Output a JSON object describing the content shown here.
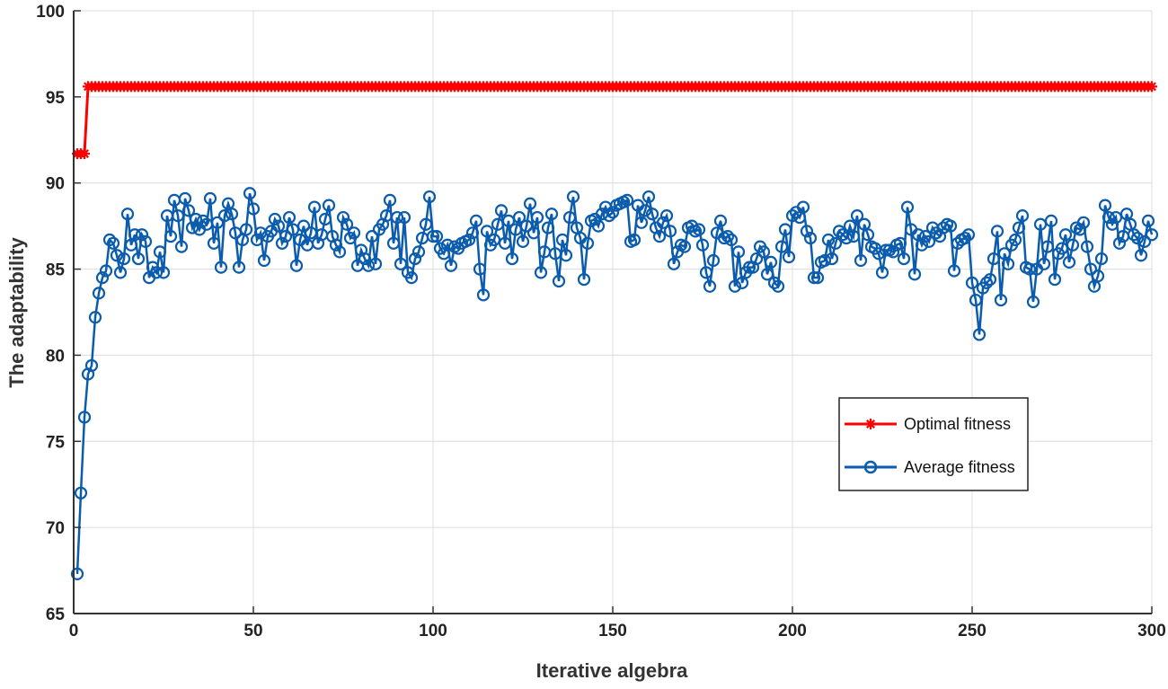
{
  "chart_data": {
    "type": "line",
    "title": "",
    "xlabel": "Iterative algebra",
    "ylabel": "The adaptability",
    "xlim": [
      0,
      300
    ],
    "ylim": [
      65,
      100
    ],
    "xticks": [
      0,
      50,
      100,
      150,
      200,
      250,
      300
    ],
    "yticks": [
      65,
      70,
      75,
      80,
      85,
      90,
      95,
      100
    ],
    "grid": true,
    "legend_position": "right-center",
    "series": [
      {
        "name": "Optimal fitness",
        "color": "#ff0000",
        "marker": "asterisk",
        "segments": [
          {
            "x_start": 1,
            "x_end": 3,
            "value": 91.7
          },
          {
            "x_start": 4,
            "x_end": 300,
            "value": 95.6
          }
        ]
      },
      {
        "name": "Average fitness",
        "color": "#0b5cad",
        "marker": "circle",
        "x": [
          1,
          2,
          3,
          4,
          5,
          6,
          7,
          8,
          9,
          10,
          11,
          12,
          13,
          14,
          15,
          16,
          17,
          18,
          19,
          20,
          21,
          22,
          23,
          24,
          25,
          26,
          27,
          28,
          29,
          30,
          31,
          32,
          33,
          34,
          35,
          36,
          37,
          38,
          39,
          40,
          41,
          42,
          43,
          44,
          45,
          46,
          47,
          48,
          49,
          50,
          51,
          52,
          53,
          54,
          55,
          56,
          57,
          58,
          59,
          60,
          61,
          62,
          63,
          64,
          65,
          66,
          67,
          68,
          69,
          70,
          71,
          72,
          73,
          74,
          75,
          76,
          77,
          78,
          79,
          80,
          81,
          82,
          83,
          84,
          85,
          86,
          87,
          88,
          89,
          90,
          91,
          92,
          93,
          94,
          95,
          96,
          97,
          98,
          99,
          100,
          101,
          102,
          103,
          104,
          105,
          106,
          107,
          108,
          109,
          110,
          111,
          112,
          113,
          114,
          115,
          116,
          117,
          118,
          119,
          120,
          121,
          122,
          123,
          124,
          125,
          126,
          127,
          128,
          129,
          130,
          131,
          132,
          133,
          134,
          135,
          136,
          137,
          138,
          139,
          140,
          141,
          142,
          143,
          144,
          145,
          146,
          147,
          148,
          149,
          150,
          151,
          152,
          153,
          154,
          155,
          156,
          157,
          158,
          159,
          160,
          161,
          162,
          163,
          164,
          165,
          166,
          167,
          168,
          169,
          170,
          171,
          172,
          173,
          174,
          175,
          176,
          177,
          178,
          179,
          180,
          181,
          182,
          183,
          184,
          185,
          186,
          187,
          188,
          189,
          190,
          191,
          192,
          193,
          194,
          195,
          196,
          197,
          198,
          199,
          200,
          201,
          202,
          203,
          204,
          205,
          206,
          207,
          208,
          209,
          210,
          211,
          212,
          213,
          214,
          215,
          216,
          217,
          218,
          219,
          220,
          221,
          222,
          223,
          224,
          225,
          226,
          227,
          228,
          229,
          230,
          231,
          232,
          233,
          234,
          235,
          236,
          237,
          238,
          239,
          240,
          241,
          242,
          243,
          244,
          245,
          246,
          247,
          248,
          249,
          250,
          251,
          252,
          253,
          254,
          255,
          256,
          257,
          258,
          259,
          260,
          261,
          262,
          263,
          264,
          265,
          266,
          267,
          268,
          269,
          270,
          271,
          272,
          273,
          274,
          275,
          276,
          277,
          278,
          279,
          280,
          281,
          282,
          283,
          284,
          285,
          286,
          287,
          288,
          289,
          290,
          291,
          292,
          293,
          294,
          295,
          296,
          297,
          298,
          299,
          300
        ],
        "values": [
          67.3,
          72.0,
          76.4,
          78.9,
          79.4,
          82.2,
          83.6,
          84.5,
          84.9,
          86.7,
          86.5,
          85.8,
          84.8,
          85.6,
          88.2,
          86.4,
          87.0,
          85.6,
          87.0,
          86.6,
          84.5,
          85.1,
          84.8,
          86.0,
          84.8,
          88.1,
          86.9,
          89.0,
          88.1,
          86.3,
          89.1,
          88.4,
          87.4,
          87.9,
          87.3,
          87.8,
          87.6,
          89.1,
          86.5,
          87.7,
          85.1,
          88.1,
          88.8,
          88.2,
          87.1,
          85.1,
          86.7,
          87.3,
          89.4,
          88.5,
          86.7,
          87.1,
          85.5,
          86.9,
          87.2,
          87.9,
          87.5,
          86.5,
          86.9,
          88.0,
          87.3,
          85.2,
          86.7,
          87.5,
          86.4,
          87.1,
          88.6,
          86.5,
          87.0,
          87.9,
          88.7,
          86.9,
          86.4,
          86.0,
          88.0,
          87.6,
          86.8,
          87.1,
          85.2,
          86.1,
          85.6,
          85.2,
          86.9,
          85.3,
          87.3,
          87.6,
          88.1,
          89.0,
          86.5,
          88.0,
          85.3,
          88.0,
          84.8,
          84.5,
          85.6,
          86.0,
          86.8,
          87.6,
          89.2,
          86.9,
          86.9,
          86.2,
          85.9,
          86.4,
          85.2,
          86.3,
          86.2,
          86.5,
          86.6,
          86.7,
          87.1,
          87.8,
          85.0,
          83.5,
          87.2,
          86.4,
          86.7,
          87.6,
          88.4,
          86.5,
          87.8,
          85.6,
          87.3,
          88.0,
          86.6,
          87.5,
          88.8,
          87.1,
          88.0,
          84.8,
          86.0,
          87.4,
          88.2,
          85.9,
          84.3,
          86.7,
          85.8,
          88.0,
          89.2,
          87.4,
          86.8,
          84.4,
          86.5,
          87.8,
          87.9,
          87.5,
          88.2,
          88.6,
          88.1,
          88.3,
          88.7,
          88.8,
          88.9,
          89.0,
          86.6,
          86.7,
          88.7,
          87.7,
          88.4,
          89.2,
          88.2,
          87.4,
          86.9,
          87.7,
          88.1,
          87.2,
          85.3,
          86.0,
          86.4,
          86.3,
          87.4,
          87.5,
          87.2,
          87.3,
          86.4,
          84.8,
          84.0,
          85.5,
          87.1,
          87.8,
          86.8,
          86.9,
          86.7,
          84.0,
          86.0,
          84.2,
          84.8,
          85.1,
          85.1,
          85.6,
          86.3,
          86.0,
          84.7,
          85.4,
          84.2,
          84.0,
          86.3,
          87.3,
          85.7,
          88.1,
          88.3,
          88.0,
          88.6,
          87.2,
          86.8,
          84.5,
          84.5,
          85.4,
          85.5,
          86.7,
          85.6,
          86.5,
          87.2,
          87.0,
          86.8,
          87.5,
          86.9,
          88.1,
          85.5,
          87.6,
          87.0,
          86.3,
          86.2,
          85.9,
          84.8,
          86.1,
          86.1,
          86.0,
          86.4,
          86.5,
          85.6,
          88.6,
          87.3,
          84.7,
          87.0,
          86.4,
          86.9,
          86.6,
          87.4,
          87.1,
          86.9,
          87.4,
          87.6,
          87.5,
          84.9,
          86.5,
          86.7,
          86.8,
          87.0,
          84.2,
          83.2,
          81.2,
          83.9,
          84.2,
          84.4,
          85.6,
          87.2,
          83.2,
          85.9,
          85.3,
          86.4,
          86.7,
          87.4,
          88.1,
          85.1,
          85.0,
          83.1,
          85.0,
          87.6,
          85.3,
          86.3,
          87.8,
          84.4,
          85.9,
          86.2,
          87.0,
          85.4,
          86.4,
          87.4,
          87.3,
          87.7,
          86.3,
          85.0,
          84.0,
          84.6,
          85.6,
          88.7,
          88.0,
          87.6,
          88.0,
          86.5,
          86.9,
          88.2,
          87.6,
          87.0,
          86.8,
          85.8,
          86.6,
          87.8,
          87.0
        ]
      }
    ]
  }
}
